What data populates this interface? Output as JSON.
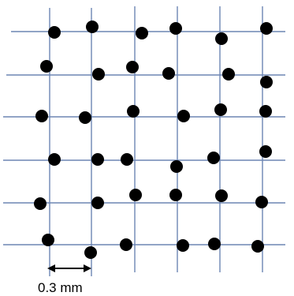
{
  "diagram": {
    "grid_line_color": "#6d86b4",
    "dot_color": "#000000",
    "scale_bar": {
      "label": "0.3 mm"
    }
  }
}
